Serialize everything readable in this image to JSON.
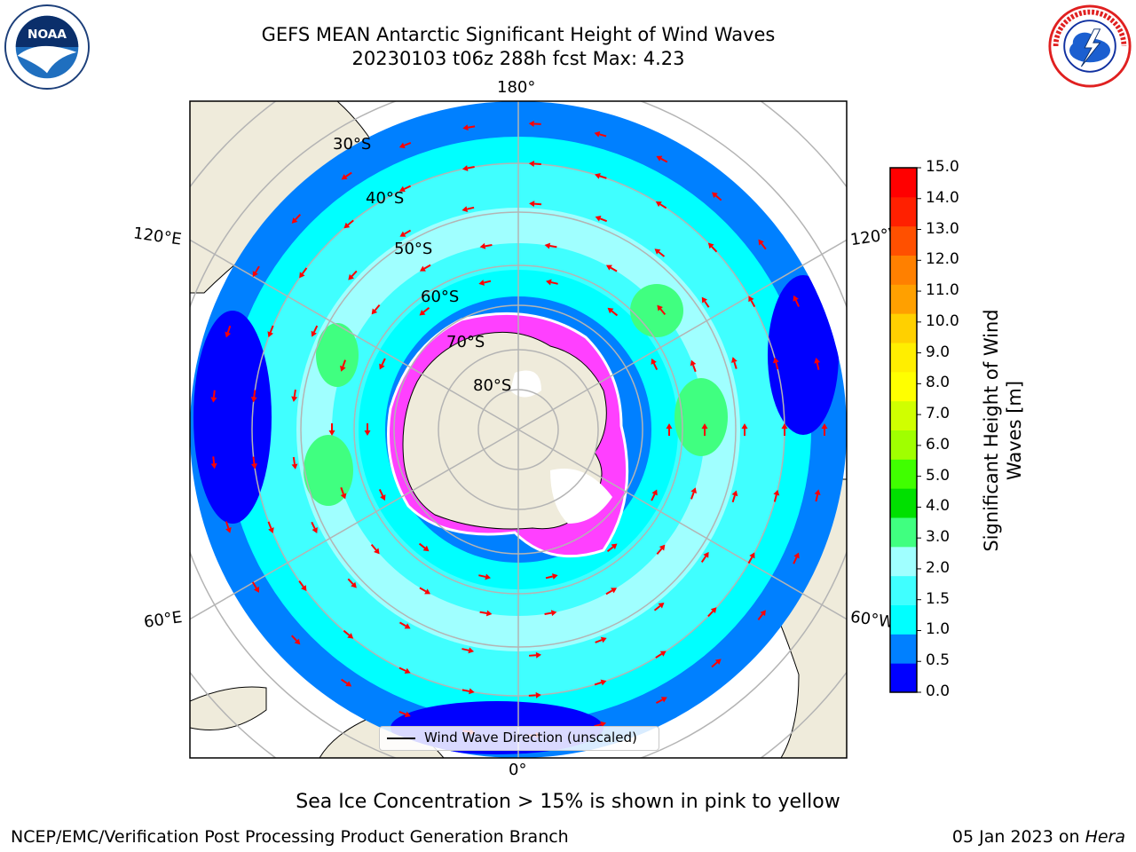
{
  "header": {
    "title_line1": "GEFS MEAN Antarctic Significant Height of Wind Waves",
    "title_line2": "20230103 t06z 288h fcst   Max: 4.23"
  },
  "logos": {
    "left": "noaa-logo",
    "right": "national-weather-service-logo",
    "noaa_text": "NOAA",
    "nws_text": "NATIONAL WEATHER SERVICE"
  },
  "map": {
    "longitude_labels": [
      "180°",
      "120°E",
      "120°W",
      "60°E",
      "60°W",
      "0°"
    ],
    "latitude_labels": [
      "30°S",
      "40°S",
      "50°S",
      "60°S",
      "70°S",
      "80°S"
    ],
    "legend_label": "Wind Wave Direction (unscaled)"
  },
  "colorbar": {
    "label": "Significant Height of Wind Waves [m]",
    "ticks": [
      "15.0",
      "14.0",
      "13.0",
      "12.0",
      "11.0",
      "10.0",
      "9.0",
      "8.0",
      "7.0",
      "6.0",
      "5.0",
      "4.0",
      "3.0",
      "2.0",
      "1.5",
      "1.0",
      "0.5",
      "0.0"
    ],
    "colors": [
      "#0000ff",
      "#0080ff",
      "#00ffff",
      "#40ffff",
      "#a0ffff",
      "#40ff80",
      "#00e000",
      "#40ff00",
      "#a0ff00",
      "#d0ff00",
      "#ffff00",
      "#ffee00",
      "#ffd000",
      "#ffa000",
      "#ff8000",
      "#ff5000",
      "#ff2000",
      "#ff0000"
    ]
  },
  "caption": "Sea Ice Concentration > 15% is shown in pink to yellow",
  "footer": {
    "left": "NCEP/EMC/Verification Post Processing Product Generation Branch",
    "right_date": "05 Jan 2023 on ",
    "right_machine": "Hera"
  },
  "colors": {
    "land": "#efebdb",
    "arrow": "#ff0000",
    "grid": "#b4b4b4",
    "sea_ice": "#ff40ff"
  }
}
